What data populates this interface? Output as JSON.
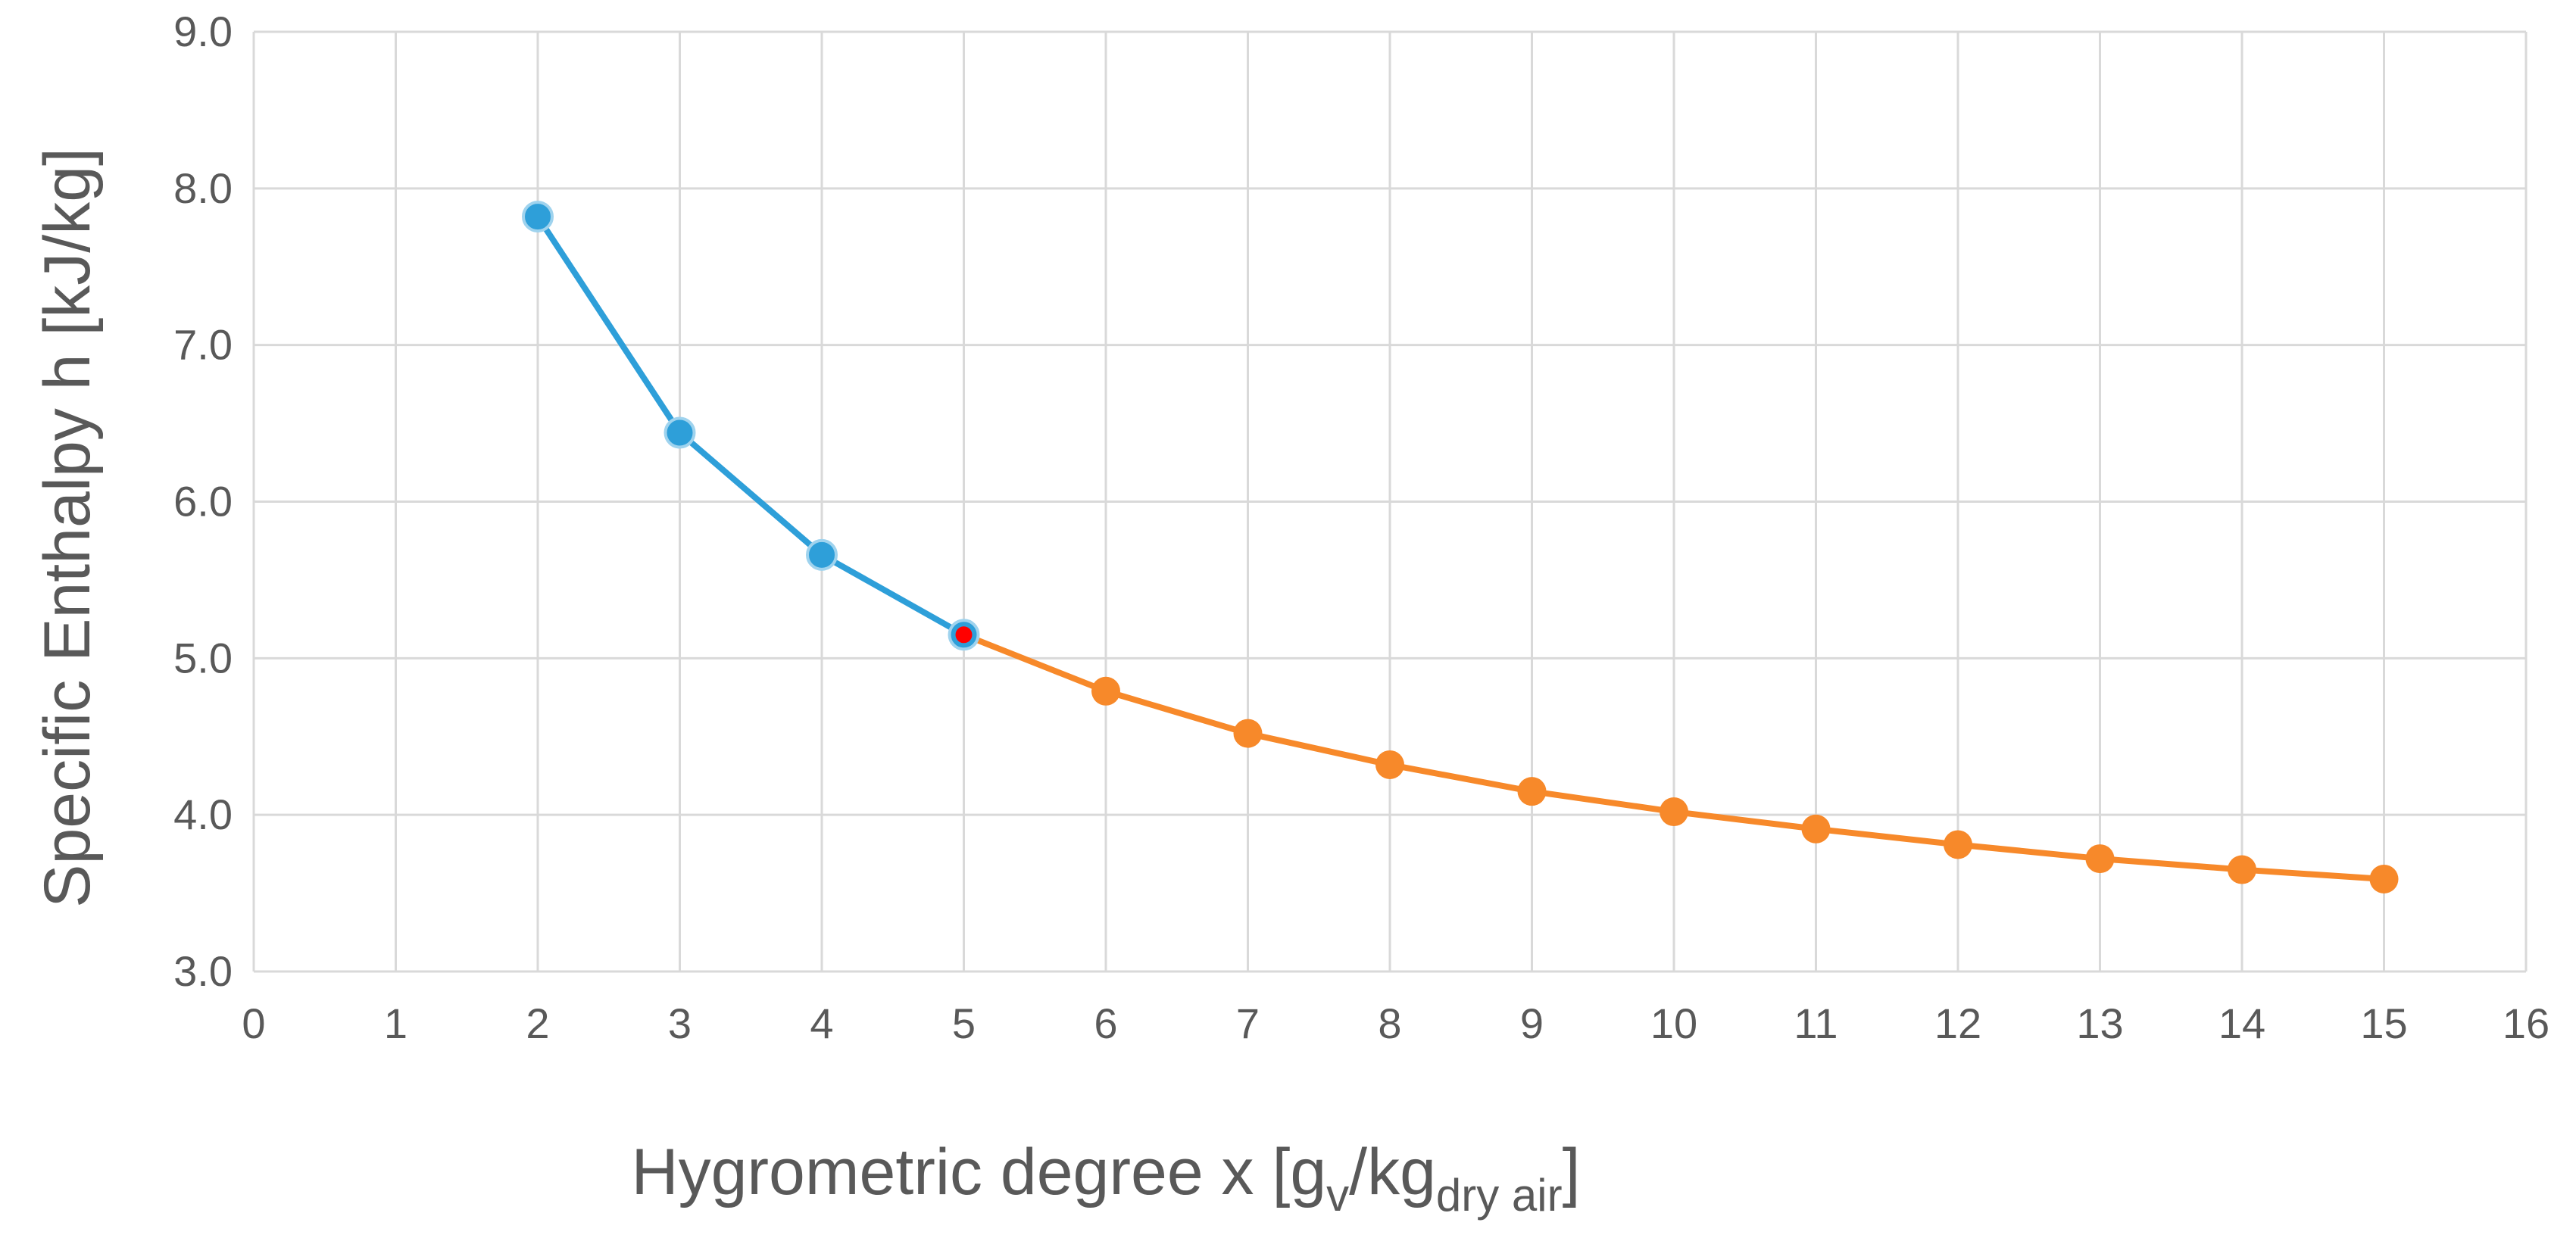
{
  "chart_data": {
    "type": "line",
    "xlabel_main": "Hygrometric  degree x  [g",
    "xlabel_sub1": "v",
    "xlabel_mid": "/kg",
    "xlabel_sub2": "dry air",
    "xlabel_end": "]",
    "ylabel": "Specific Enthalpy h [kJ/kg]",
    "xlim": [
      0,
      16
    ],
    "ylim": [
      3.0,
      9.0
    ],
    "x_ticks": [
      "0",
      "1",
      "2",
      "3",
      "4",
      "5",
      "6",
      "7",
      "8",
      "9",
      "10",
      "11",
      "12",
      "13",
      "14",
      "15",
      "16"
    ],
    "y_ticks": [
      "3.0",
      "4.0",
      "5.0",
      "6.0",
      "7.0",
      "8.0",
      "9.0"
    ],
    "grid": true,
    "series": [
      {
        "color": "#2e9fd9",
        "x": [
          2,
          3,
          4,
          5
        ],
        "y": [
          7.82,
          6.44,
          5.66,
          5.15
        ]
      },
      {
        "color": "#f7892a",
        "x": [
          5,
          6,
          7,
          8,
          9,
          10,
          11,
          12,
          13,
          14,
          15
        ],
        "y": [
          5.15,
          4.79,
          4.52,
          4.32,
          4.15,
          4.02,
          3.91,
          3.81,
          3.72,
          3.65,
          3.59
        ]
      }
    ],
    "highlight_point": {
      "x": 5,
      "y": 5.15,
      "color": "#ff0000"
    }
  }
}
